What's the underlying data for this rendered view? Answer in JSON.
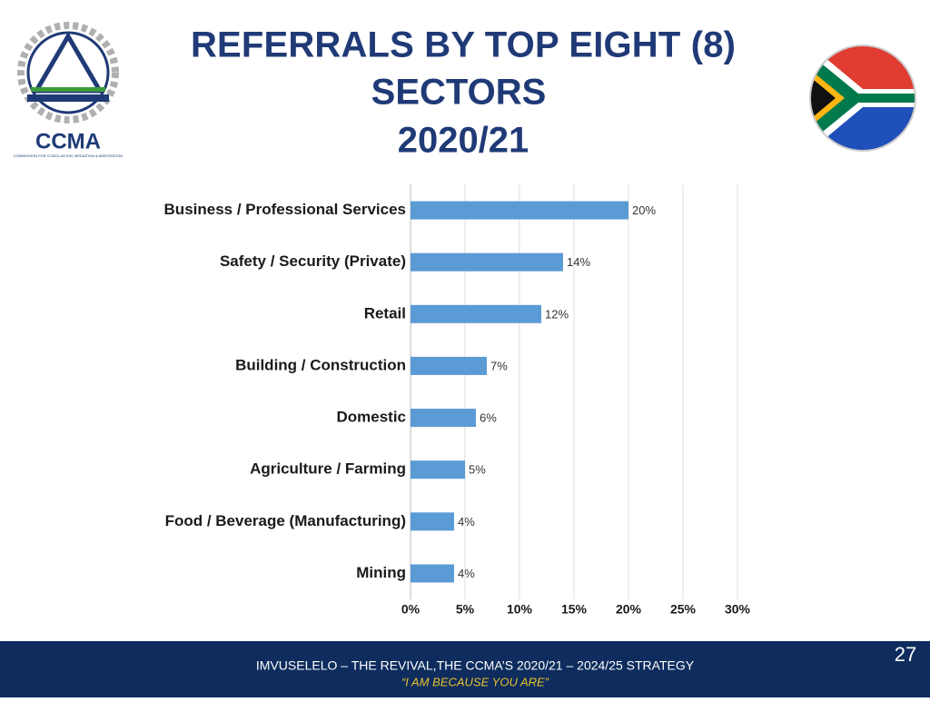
{
  "slide": {
    "logo_text": "CCMA",
    "logo_subtext": "COMMISSION FOR CONCILIATION, MEDIATION & ARBITRATION",
    "footer": "IMVUSELELO – THE REVIVAL,THE CCMA’S 2020/21 – 2024/25 STRATEGY",
    "footer_quote": "“I AM BECAUSE YOU ARE”",
    "page_number": "27"
  },
  "chart_data": {
    "type": "hbar",
    "title": [
      "REFERRALS BY TOP EIGHT (8)",
      "SECTORS",
      "2020/21"
    ],
    "categories": [
      "Business / Professional Services",
      "Safety / Security (Private)",
      "Retail",
      "Building / Construction",
      "Domestic",
      "Agriculture / Farming",
      "Food / Beverage (Manufacturing)",
      "Mining"
    ],
    "values": [
      20,
      14,
      12,
      7,
      6,
      5,
      4,
      4
    ],
    "value_labels": [
      "20%",
      "14%",
      "12%",
      "7%",
      "6%",
      "5%",
      "4%",
      "4%"
    ],
    "color": "#5b9bd5",
    "xlim": [
      0,
      30
    ],
    "xticks": [
      {
        "value": 0,
        "label": "0%"
      },
      {
        "value": 5,
        "label": "5%"
      },
      {
        "value": 10,
        "label": "10%"
      },
      {
        "value": 15,
        "label": "15%"
      },
      {
        "value": 20,
        "label": "20%"
      },
      {
        "value": 25,
        "label": "25%"
      },
      {
        "value": 30,
        "label": "30%"
      }
    ],
    "grid": true
  }
}
